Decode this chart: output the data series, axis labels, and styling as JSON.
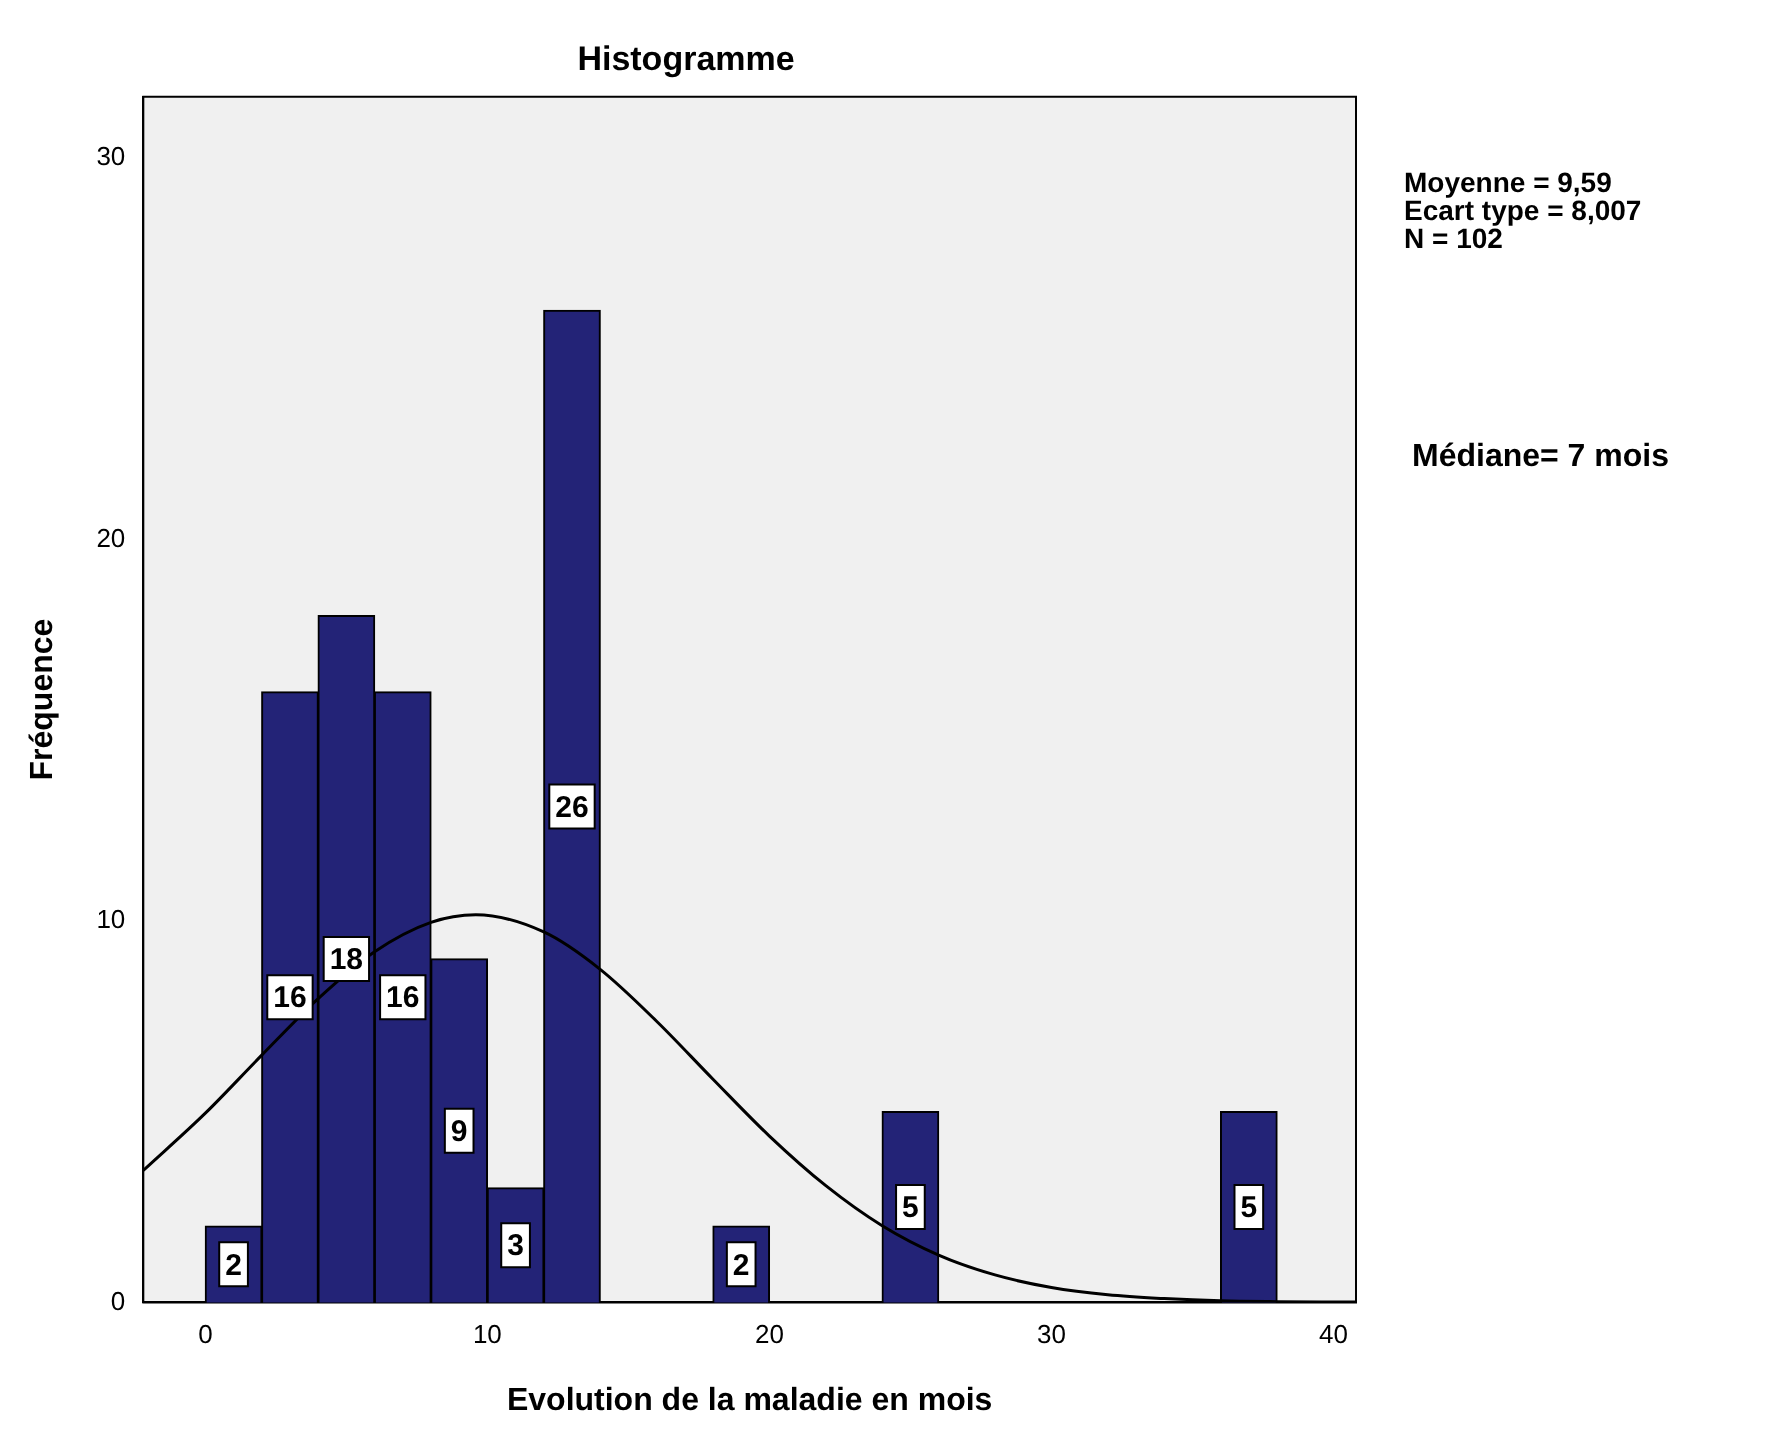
{
  "chart_data": {
    "type": "histogram",
    "title": "Histogramme",
    "xlabel": "Evolution de la maladie en mois",
    "ylabel": "Fréquence",
    "xlim": [
      -2.2,
      40.8
    ],
    "ylim": [
      0,
      31.6
    ],
    "xticks": [
      0,
      10,
      20,
      30,
      40
    ],
    "yticks": [
      0,
      10,
      20,
      30
    ],
    "grid": false,
    "legend": false,
    "annotations": [
      "Moyenne = 9,59",
      "Ecart type = 8,007",
      "N = 102",
      "Médiane= 7 mois"
    ],
    "series": [
      {
        "type": "histogram",
        "color": "#232377",
        "bins": [
          0,
          2,
          4,
          6,
          8,
          10,
          12,
          14,
          16,
          18,
          20,
          22,
          24,
          26,
          28,
          30,
          32,
          34,
          36,
          38
        ],
        "values": [
          2,
          16,
          18,
          16,
          9,
          3,
          26,
          0,
          0,
          2,
          0,
          0,
          5,
          0,
          0,
          0,
          0,
          0,
          5
        ],
        "value_labels": [
          "2",
          "16",
          "18",
          "16",
          "9",
          "3",
          "26",
          null,
          null,
          "2",
          null,
          null,
          "5",
          null,
          null,
          null,
          null,
          null,
          "5"
        ]
      },
      {
        "type": "line",
        "color": "#000000",
        "marker": "none",
        "x": [
          -2.2,
          0,
          2,
          4,
          6,
          8,
          9.59,
          12,
          14,
          16,
          18,
          20,
          22,
          24,
          26,
          28,
          30,
          32,
          34,
          36,
          38,
          40.8
        ],
        "values": [
          3.46,
          4.96,
          6.48,
          7.96,
          9.19,
          9.96,
          10.16,
          9.71,
          8.73,
          7.37,
          5.85,
          4.36,
          3.06,
          2.01,
          1.24,
          0.72,
          0.39,
          0.2,
          0.1,
          0.04,
          0.02,
          0.01
        ]
      }
    ]
  }
}
